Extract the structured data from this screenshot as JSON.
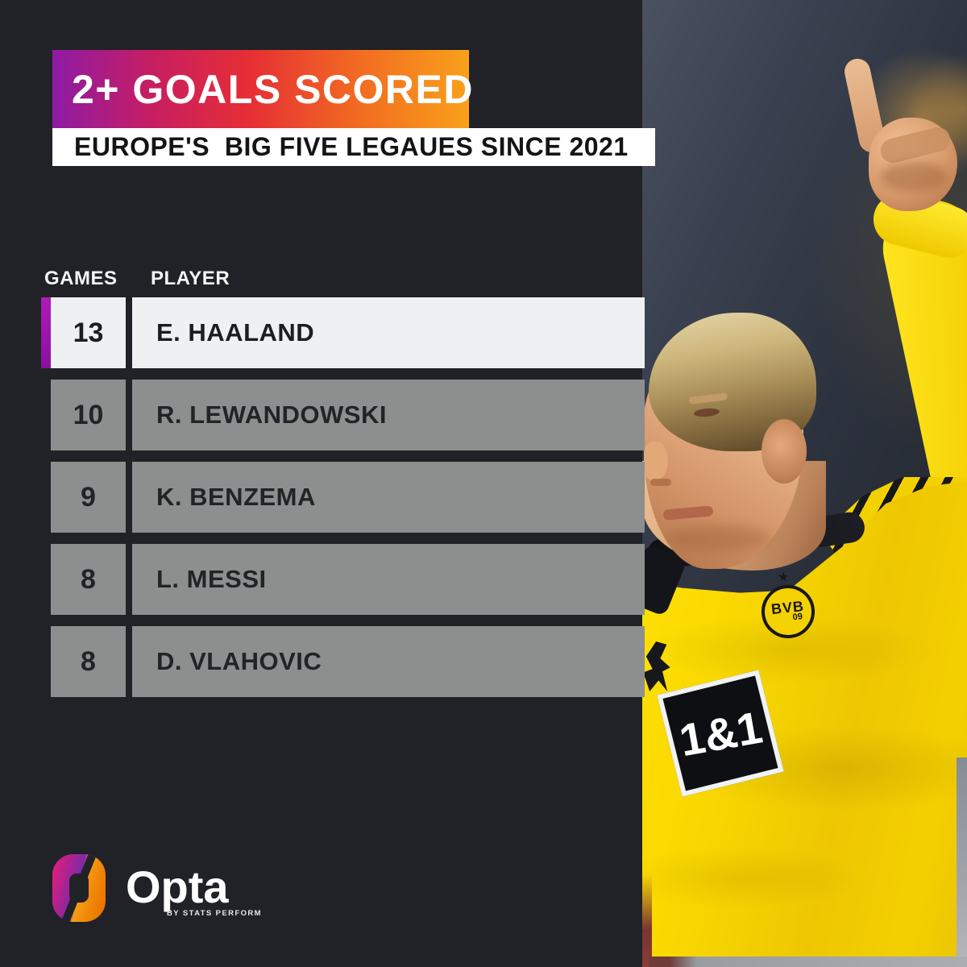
{
  "header": {
    "title": "2+ GOALS SCORED",
    "subtitle": "EUROPE'S  BIG FIVE LEGAUES SINCE 2021"
  },
  "table": {
    "columns": [
      "GAMES",
      "PLAYER"
    ],
    "rows": [
      {
        "games": "13",
        "player": "E. HAALAND"
      },
      {
        "games": "10",
        "player": "R. LEWANDOWSKI"
      },
      {
        "games": "9",
        "player": "K. BENZEMA"
      },
      {
        "games": "8",
        "player": "L. MESSI"
      },
      {
        "games": "8",
        "player": "D. VLAHOVIC"
      }
    ]
  },
  "chart_data": {
    "type": "table",
    "title": "2+ GOALS SCORED",
    "subtitle": "EUROPE'S  BIG FIVE LEGAUES SINCE 2021",
    "columns": [
      "GAMES",
      "PLAYER"
    ],
    "rows": [
      [
        13,
        "E. HAALAND"
      ],
      [
        10,
        "R. LEWANDOWSKI"
      ],
      [
        9,
        "K. BENZEMA"
      ],
      [
        8,
        "L. MESSI"
      ],
      [
        8,
        "D. VLAHOVIC"
      ]
    ],
    "highlighted_row": "E. HAALAND"
  },
  "branding": {
    "logo_text": "Opta",
    "logo_subtext": "BY STATS PERFORM"
  },
  "photo": {
    "sponsor": "1&1",
    "badge": "BVB",
    "badge_year": "09",
    "badge_star": "★"
  },
  "colors": {
    "canvas_bg": "#212227",
    "banner_gradient": [
      "#8e1ba4",
      "#e62e35",
      "#f9a11b"
    ],
    "highlight_accent": "#9b13ad",
    "highlight_row_bg": "#eef0f1",
    "row_bg": "#8d8f8f",
    "jersey_yellow": "#f6d500"
  }
}
